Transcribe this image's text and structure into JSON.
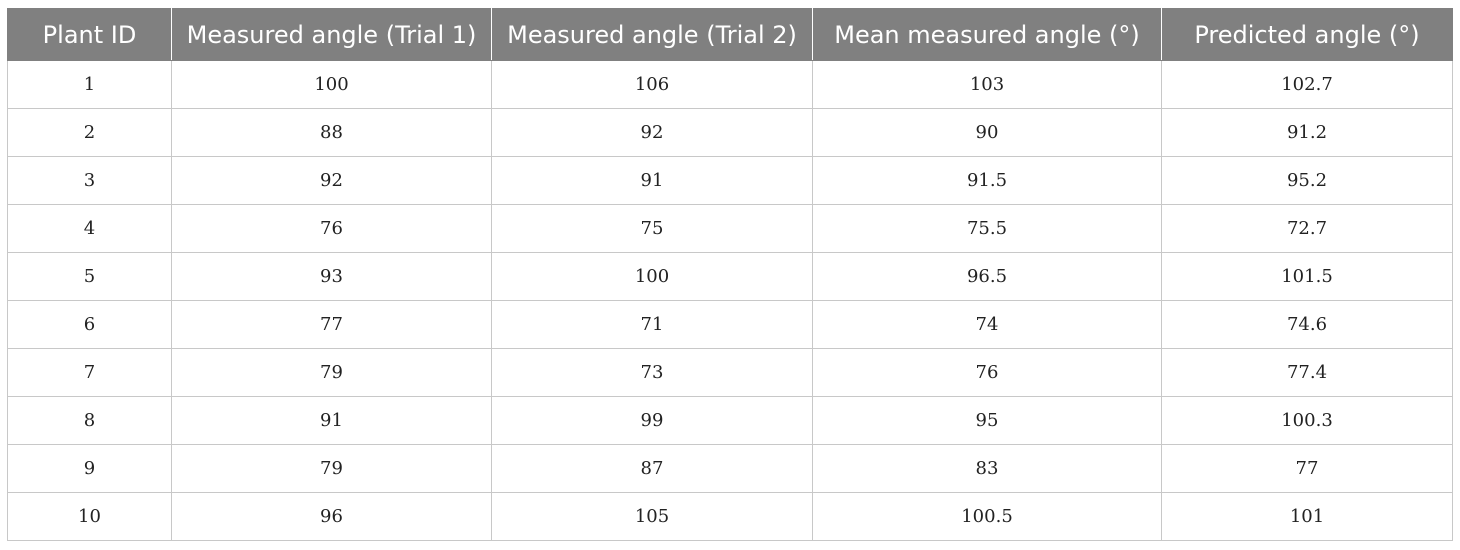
{
  "table": {
    "headers": [
      "Plant ID",
      "Measured angle (Trial 1)",
      "Measured angle (Trial 2)",
      "Mean measured angle (°)",
      "Predicted angle (°)"
    ],
    "rows": [
      [
        "1",
        "100",
        "106",
        "103",
        "102.7"
      ],
      [
        "2",
        "88",
        "92",
        "90",
        "91.2"
      ],
      [
        "3",
        "92",
        "91",
        "91.5",
        "95.2"
      ],
      [
        "4",
        "76",
        "75",
        "75.5",
        "72.7"
      ],
      [
        "5",
        "93",
        "100",
        "96.5",
        "101.5"
      ],
      [
        "6",
        "77",
        "71",
        "74",
        "74.6"
      ],
      [
        "7",
        "79",
        "73",
        "76",
        "77.4"
      ],
      [
        "8",
        "91",
        "99",
        "95",
        "100.3"
      ],
      [
        "9",
        "79",
        "87",
        "83",
        "77"
      ],
      [
        "10",
        "96",
        "105",
        "100.5",
        "101"
      ]
    ]
  }
}
